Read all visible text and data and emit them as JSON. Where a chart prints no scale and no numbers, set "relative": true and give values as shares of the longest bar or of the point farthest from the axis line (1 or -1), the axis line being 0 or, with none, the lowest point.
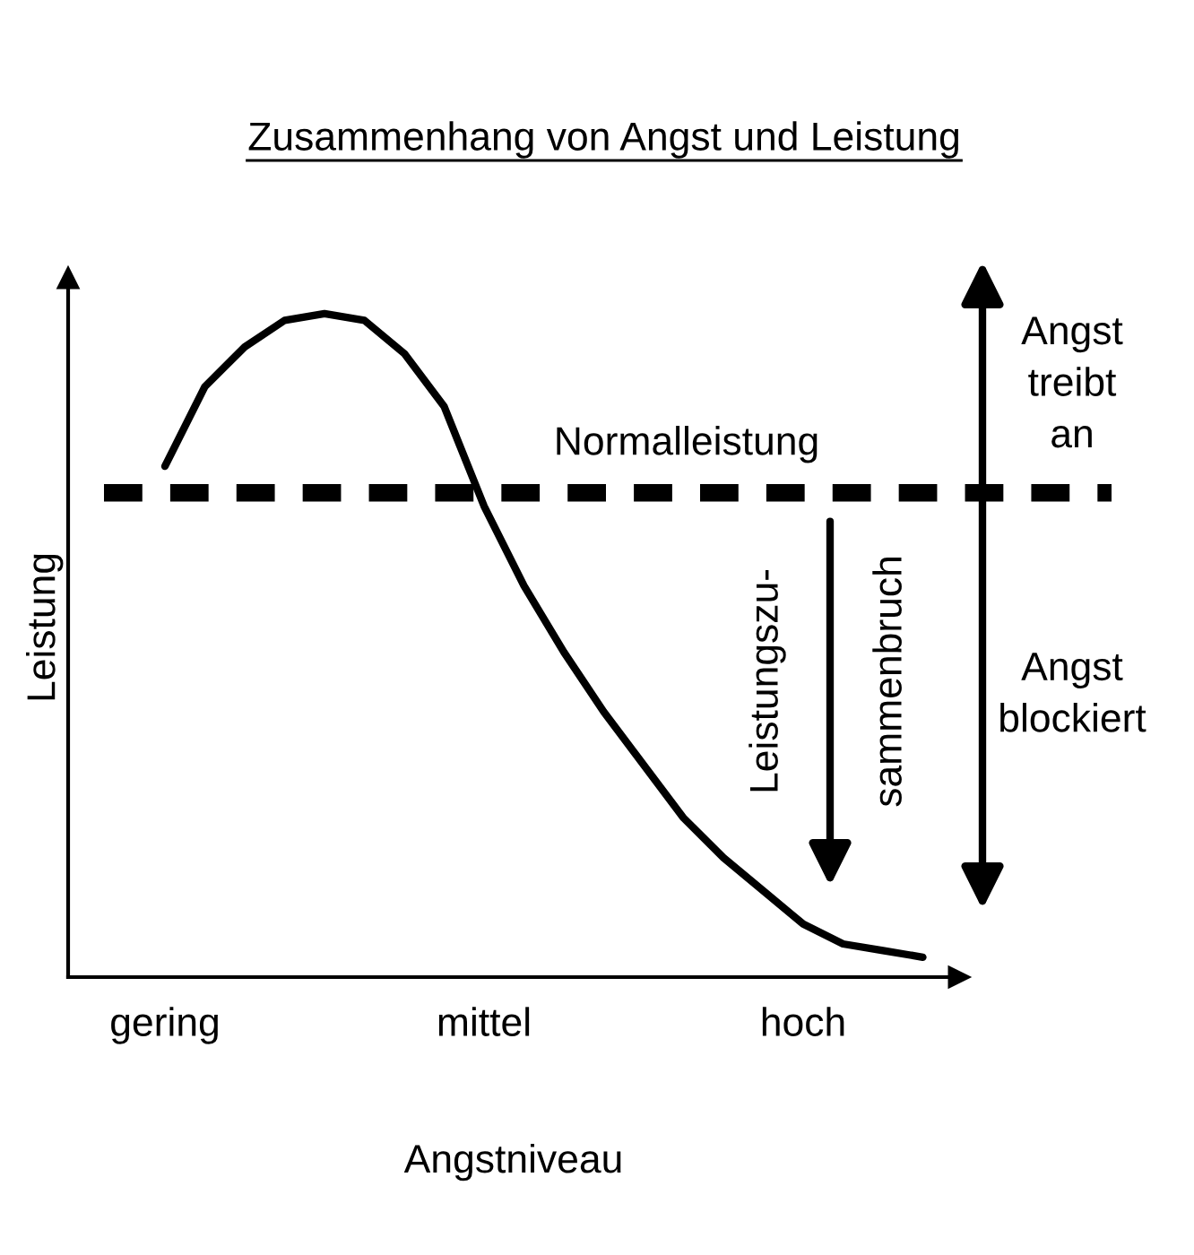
{
  "chart_data": {
    "type": "line",
    "title": "Zusammenhang von Angst und Leistung",
    "xlabel": "Angstniveau",
    "ylabel": "Leistung",
    "categories": [
      "gering",
      null,
      null,
      null,
      null,
      null,
      null,
      null,
      "mittel",
      null,
      null,
      null,
      null,
      null,
      null,
      null,
      "hoch",
      null,
      null,
      null
    ],
    "series": [
      {
        "color": "#000000",
        "values": [
          0.77,
          0.89,
          0.95,
          0.99,
          1.0,
          0.99,
          0.94,
          0.86,
          0.71,
          0.59,
          0.49,
          0.4,
          0.32,
          0.24,
          0.18,
          0.13,
          0.08,
          0.05,
          0.04,
          0.03
        ]
      }
    ],
    "relative": true,
    "marker": "none",
    "line_style": "solid",
    "grid": false,
    "legend": false,
    "tick_labels": "x",
    "ref_lines": [
      {
        "axis": "y",
        "value": 0.73,
        "label": "Normalleistung",
        "color": "#000000",
        "line_style": "dashed"
      }
    ],
    "annotations": [
      "Leistungszu-\nsammenbruch",
      "Angst\ntreibt\nan",
      "Angst\nblockiert"
    ]
  }
}
